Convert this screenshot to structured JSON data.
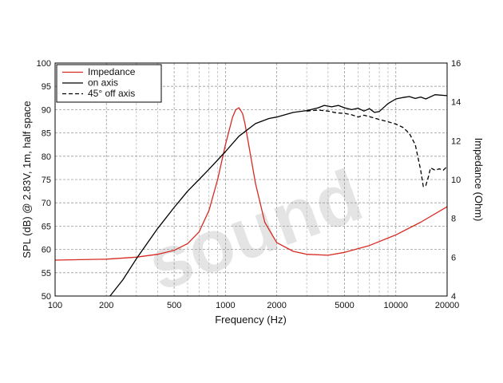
{
  "chart_data": {
    "type": "line",
    "watermark": "sound",
    "xlabel": "Frequency (Hz)",
    "ylabel": "SPL (dB) @ 2.83V, 1m, half space",
    "y2label": "Impedance (Ohm)",
    "x_scale": "log",
    "xlim": [
      100,
      20000
    ],
    "ylim": [
      50,
      100
    ],
    "y2lim": [
      4,
      16
    ],
    "grid": true,
    "legend_position": "top-left",
    "x_ticks": [
      100,
      200,
      500,
      1000,
      2000,
      5000,
      10000,
      20000
    ],
    "x_tick_labels": [
      "100",
      "200",
      "500",
      "1000",
      "2000",
      "5000",
      "10000",
      "20000"
    ],
    "y_ticks": [
      50,
      55,
      60,
      65,
      70,
      75,
      80,
      85,
      90,
      95,
      100
    ],
    "y_tick_labels": [
      "50",
      "55",
      "60",
      "65",
      "70",
      "75",
      "80",
      "85",
      "90",
      "95",
      "100"
    ],
    "y2_ticks": [
      4,
      6,
      8,
      10,
      12,
      14,
      16
    ],
    "y2_tick_labels": [
      "4",
      "6",
      "8",
      "10",
      "12",
      "14",
      "16"
    ],
    "series": [
      {
        "name": "Impedance",
        "axis": "right",
        "color": "#d62a22",
        "style": "solid",
        "x": [
          100,
          200,
          300,
          400,
          500,
          600,
          700,
          800,
          900,
          1000,
          1100,
          1150,
          1200,
          1260,
          1300,
          1400,
          1500,
          1700,
          2000,
          2500,
          3000,
          4000,
          5000,
          7000,
          10000,
          14000,
          20000
        ],
        "y": [
          5.85,
          5.9,
          6.0,
          6.15,
          6.35,
          6.7,
          7.3,
          8.4,
          10.0,
          11.8,
          13.2,
          13.6,
          13.7,
          13.4,
          12.9,
          11.3,
          9.8,
          7.8,
          6.75,
          6.3,
          6.15,
          6.1,
          6.25,
          6.6,
          7.15,
          7.8,
          8.6
        ]
      },
      {
        "name": "on axis",
        "axis": "left",
        "color": "#000000",
        "style": "solid",
        "x": [
          210,
          250,
          300,
          400,
          500,
          600,
          700,
          800,
          1000,
          1200,
          1500,
          1800,
          2000,
          2500,
          3000,
          3500,
          3800,
          4200,
          4600,
          5000,
          5500,
          6000,
          6500,
          7000,
          7500,
          8000,
          9000,
          10000,
          11000,
          12000,
          13000,
          14000,
          15000,
          17000,
          20000
        ],
        "y": [
          49.5,
          53.5,
          58.0,
          64.5,
          69.0,
          72.5,
          75.0,
          77.2,
          81.0,
          84.3,
          87.0,
          88.1,
          88.4,
          89.4,
          89.8,
          90.4,
          90.9,
          90.6,
          90.9,
          90.4,
          90.0,
          90.3,
          89.7,
          90.2,
          89.4,
          89.6,
          91.3,
          92.3,
          92.6,
          92.8,
          92.4,
          92.7,
          92.3,
          93.2,
          93.0
        ]
      },
      {
        "name": "45° off axis",
        "axis": "left",
        "color": "#000000",
        "style": "dashed",
        "x": [
          3000,
          3500,
          4000,
          4500,
          5000,
          5500,
          6000,
          6500,
          7000,
          8000,
          9000,
          10000,
          11000,
          12000,
          13000,
          14000,
          14500,
          15000,
          15500,
          16000,
          17000,
          18000,
          19000,
          20000
        ],
        "y": [
          89.7,
          89.9,
          89.7,
          89.3,
          89.2,
          88.9,
          88.4,
          88.8,
          88.5,
          87.9,
          87.4,
          86.9,
          86.2,
          84.9,
          82.5,
          77.0,
          73.5,
          73.7,
          75.5,
          77.5,
          77.0,
          77.3,
          77.0,
          77.8
        ]
      }
    ]
  }
}
